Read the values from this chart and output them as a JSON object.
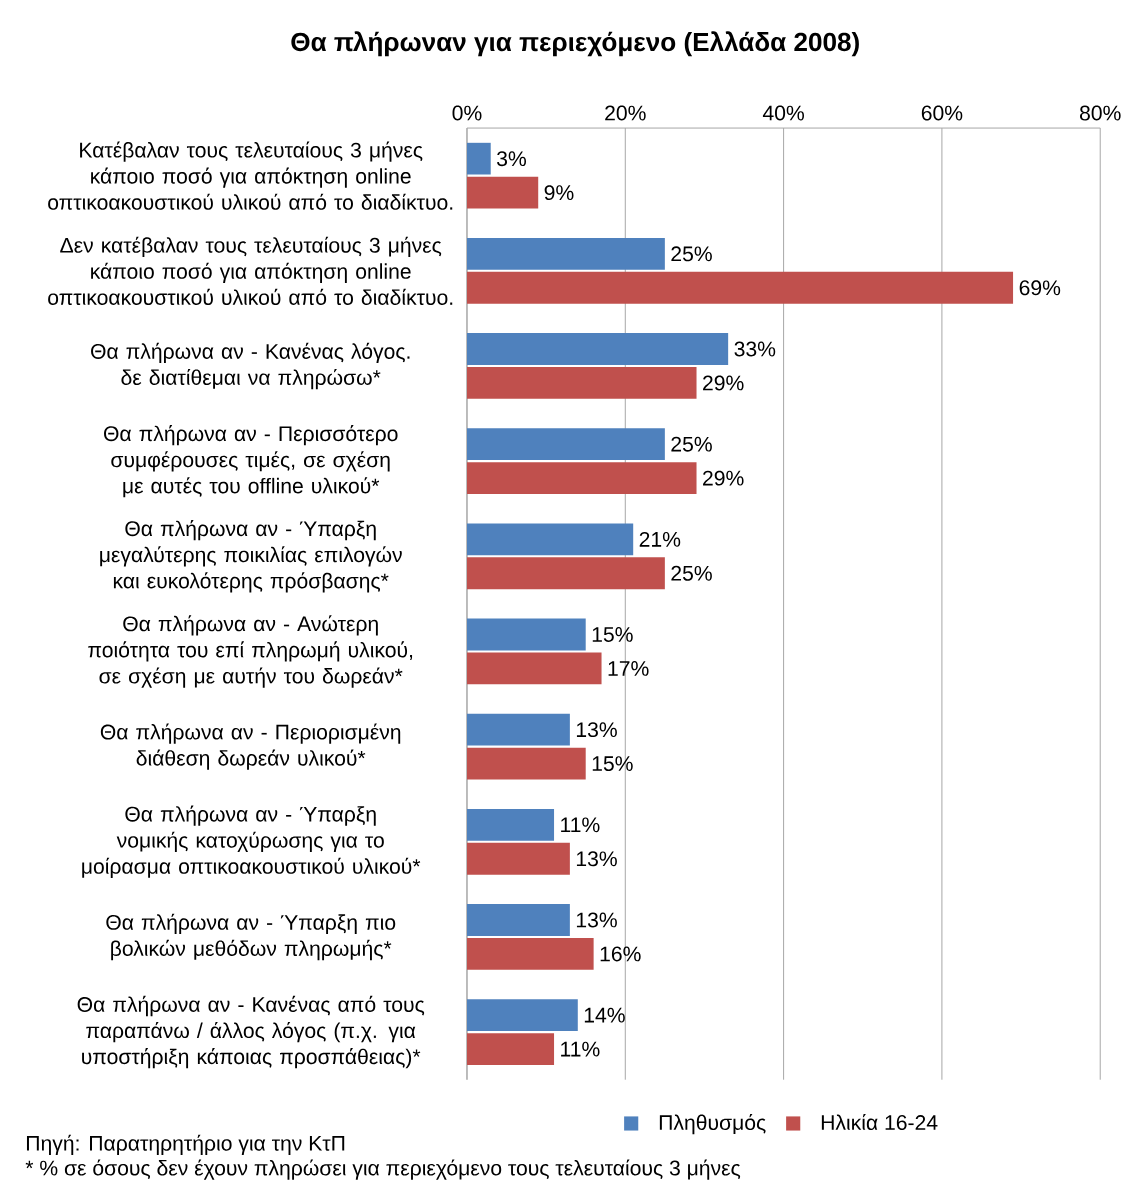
{
  "chart_data": {
    "type": "bar",
    "orientation": "horizontal",
    "title": "Θα πλήρωναν για περιεχόμενο  (Ελλάδα 2008)",
    "categories": [
      "Κατέβαλαν τους τελευταίους 3 μήνες κάποιο ποσό για απόκτηση online οπτικοακουστικού υλικού από το διαδίκτυο.",
      "Δεν κατέβαλαν τους τελευταίους 3 μήνες κάποιο ποσό για απόκτηση online οπτικοακουστικού υλικού από το διαδίκτυο.",
      "Θα πλήρωνα αν - Κανένας λόγος. δε διατίθεμαι να πληρώσω*",
      "Θα πλήρωνα αν - Περισσότερο συμφέρουσες τιμές, σε σχέση με αυτές του offline υλικού*",
      "Θα πλήρωνα αν - Ύπαρξη μεγαλύτερης ποικιλίας επιλογών και ευκολότερης πρόσβασης*",
      "Θα πλήρωνα αν - Ανώτερη ποιότητα του επί πληρωμή υλικού, σε σχέση με αυτήν του δωρεάν*",
      "Θα πλήρωνα αν - Περιορισμένη διάθεση δωρεάν υλικού*",
      "Θα πλήρωνα αν - Ύπαρξη νομικής κατοχύρωσης για το μοίρασμα οπτικοακουστικού υλικού*",
      "Θα πλήρωνα αν - Ύπαρξη πιο βολικών μεθόδων πληρωμής*",
      "Θα πλήρωνα αν - Κανένας από τους παραπάνω / άλλος λόγος (π.χ. για υποστήριξη κάποιας προσπάθειας)*"
    ],
    "series": [
      {
        "name": "Πληθυσμός",
        "color": "#4f81bd",
        "values": [
          3,
          25,
          33,
          25,
          21,
          15,
          13,
          11,
          13,
          14
        ],
        "value_labels": [
          "3%",
          "25%",
          "33%",
          "25%",
          "21%",
          "15%",
          "13%",
          "11%",
          "13%",
          "14%"
        ]
      },
      {
        "name": "Ηλικία 16-24",
        "color": "#c0504d",
        "values": [
          9,
          69,
          29,
          29,
          25,
          17,
          15,
          13,
          16,
          11
        ],
        "value_labels": [
          "9%",
          "69%",
          "29%",
          "29%",
          "25%",
          "17%",
          "15%",
          "13%",
          "16%",
          "11%"
        ]
      }
    ],
    "xlim": [
      0,
      80
    ],
    "xticks": [
      {
        "value": 0,
        "label": "0%"
      },
      {
        "value": 20,
        "label": "20%"
      },
      {
        "value": 40,
        "label": "40%"
      },
      {
        "value": 60,
        "label": "60%"
      },
      {
        "value": 80,
        "label": "80%"
      }
    ],
    "grid": "x",
    "legend": "bottom",
    "annotations": [
      "Πηγή: Παρατηρητήριο για την ΚτΠ",
      "* %  σε όσους δεν έχουν πληρώσει για περιεχόμενο τους τελευταίους 3 μήνες"
    ]
  }
}
